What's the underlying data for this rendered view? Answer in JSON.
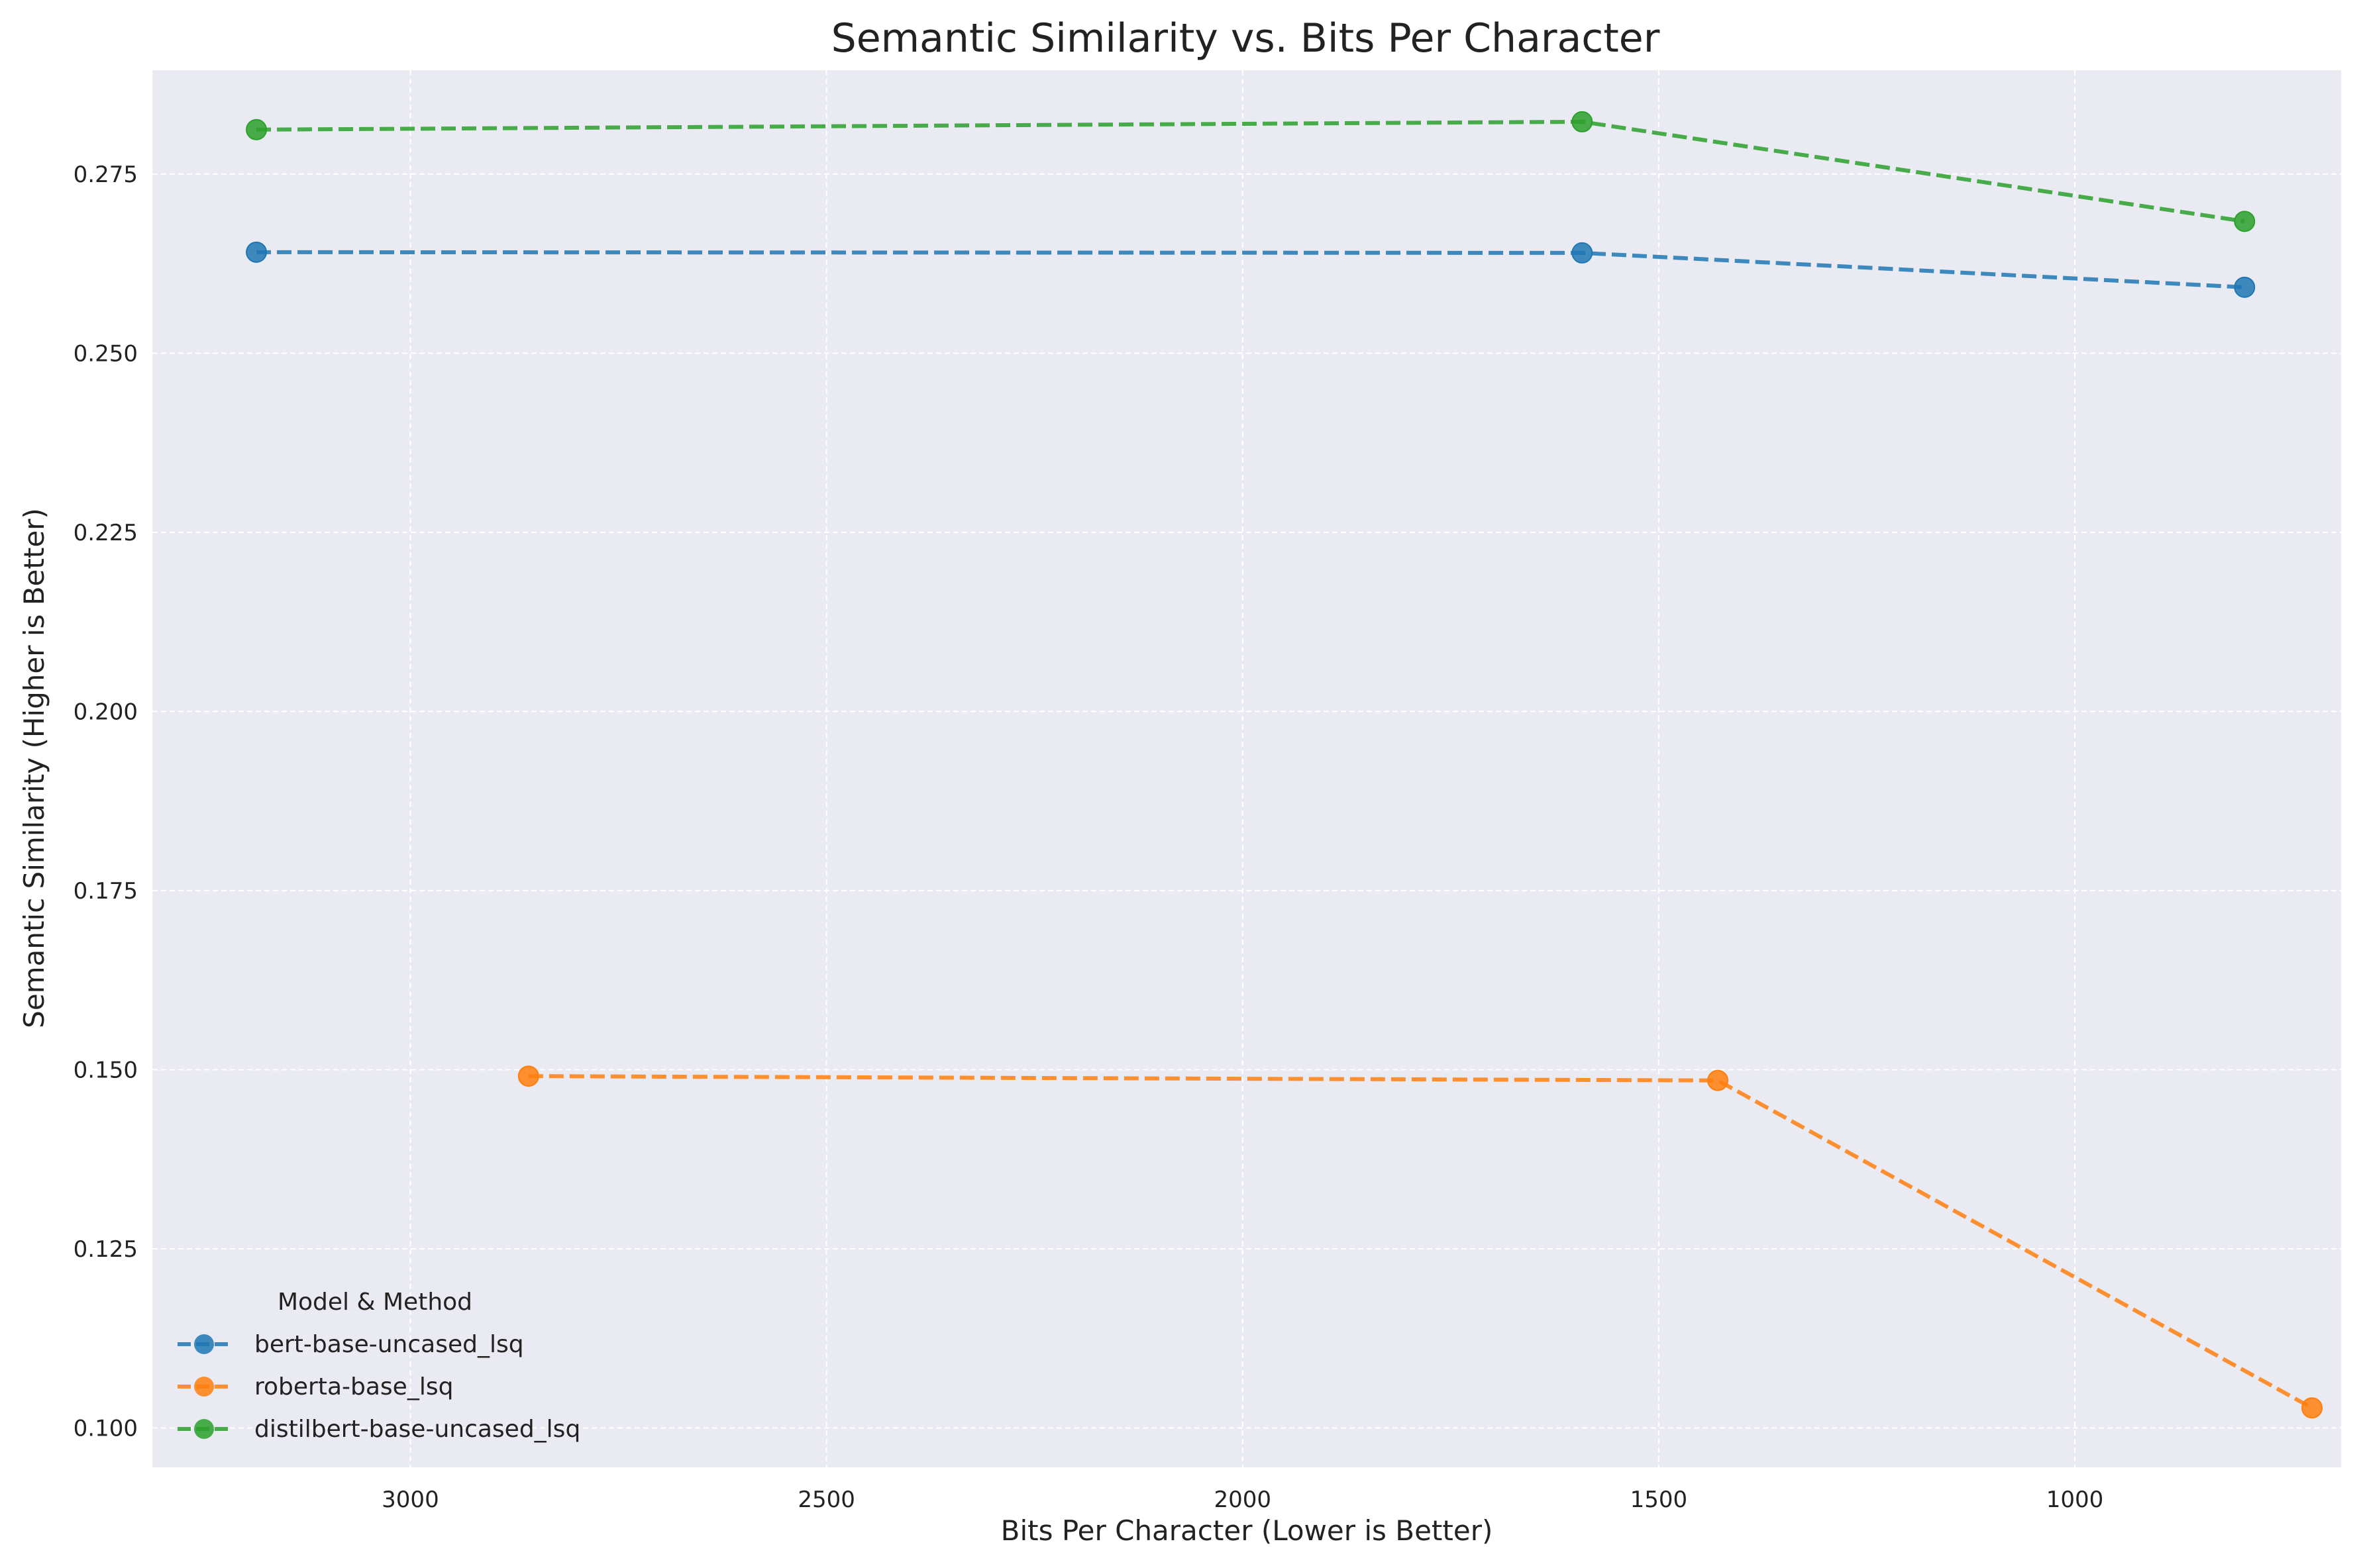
{
  "chart_data": {
    "type": "line",
    "title": "Semantic Similarity vs. Bits Per Character",
    "xlabel": "Bits Per Character (Lower is Better)",
    "ylabel": "Semantic Similarity (Higher is Better)",
    "x_inverted": true,
    "xlim": [
      3310,
      680
    ],
    "ylim": [
      0.0945,
      0.2895
    ],
    "xticks": [
      3000,
      2500,
      2000,
      1500,
      1000
    ],
    "xtick_labels": [
      "3000",
      "2500",
      "2000",
      "1500",
      "1000"
    ],
    "yticks": [
      0.1,
      0.125,
      0.15,
      0.175,
      0.2,
      0.225,
      0.25,
      0.275
    ],
    "ytick_labels": [
      "0.100",
      "0.125",
      "0.150",
      "0.175",
      "0.200",
      "0.225",
      "0.250",
      "0.275"
    ],
    "grid": true,
    "background": "#eaeaf2",
    "legend": {
      "title": "Model & Method",
      "position": "lower-left"
    },
    "series": [
      {
        "name": "bert-base-uncased_lsq",
        "color": "#1f77b4",
        "line_style": "dashed",
        "marker": "circle",
        "x": [
          3185,
          1592,
          796
        ],
        "y": [
          0.2641,
          0.264,
          0.2592
        ]
      },
      {
        "name": "roberta-base_lsq",
        "color": "#ff7f0e",
        "line_style": "dashed",
        "marker": "circle",
        "x": [
          2858,
          1429,
          715
        ],
        "y": [
          0.1491,
          0.1485,
          0.1028
        ]
      },
      {
        "name": "distilbert-base-uncased_lsq",
        "color": "#2ca02c",
        "line_style": "dashed",
        "marker": "circle",
        "x": [
          3185,
          1592,
          796
        ],
        "y": [
          0.2812,
          0.2823,
          0.2684
        ]
      }
    ]
  }
}
